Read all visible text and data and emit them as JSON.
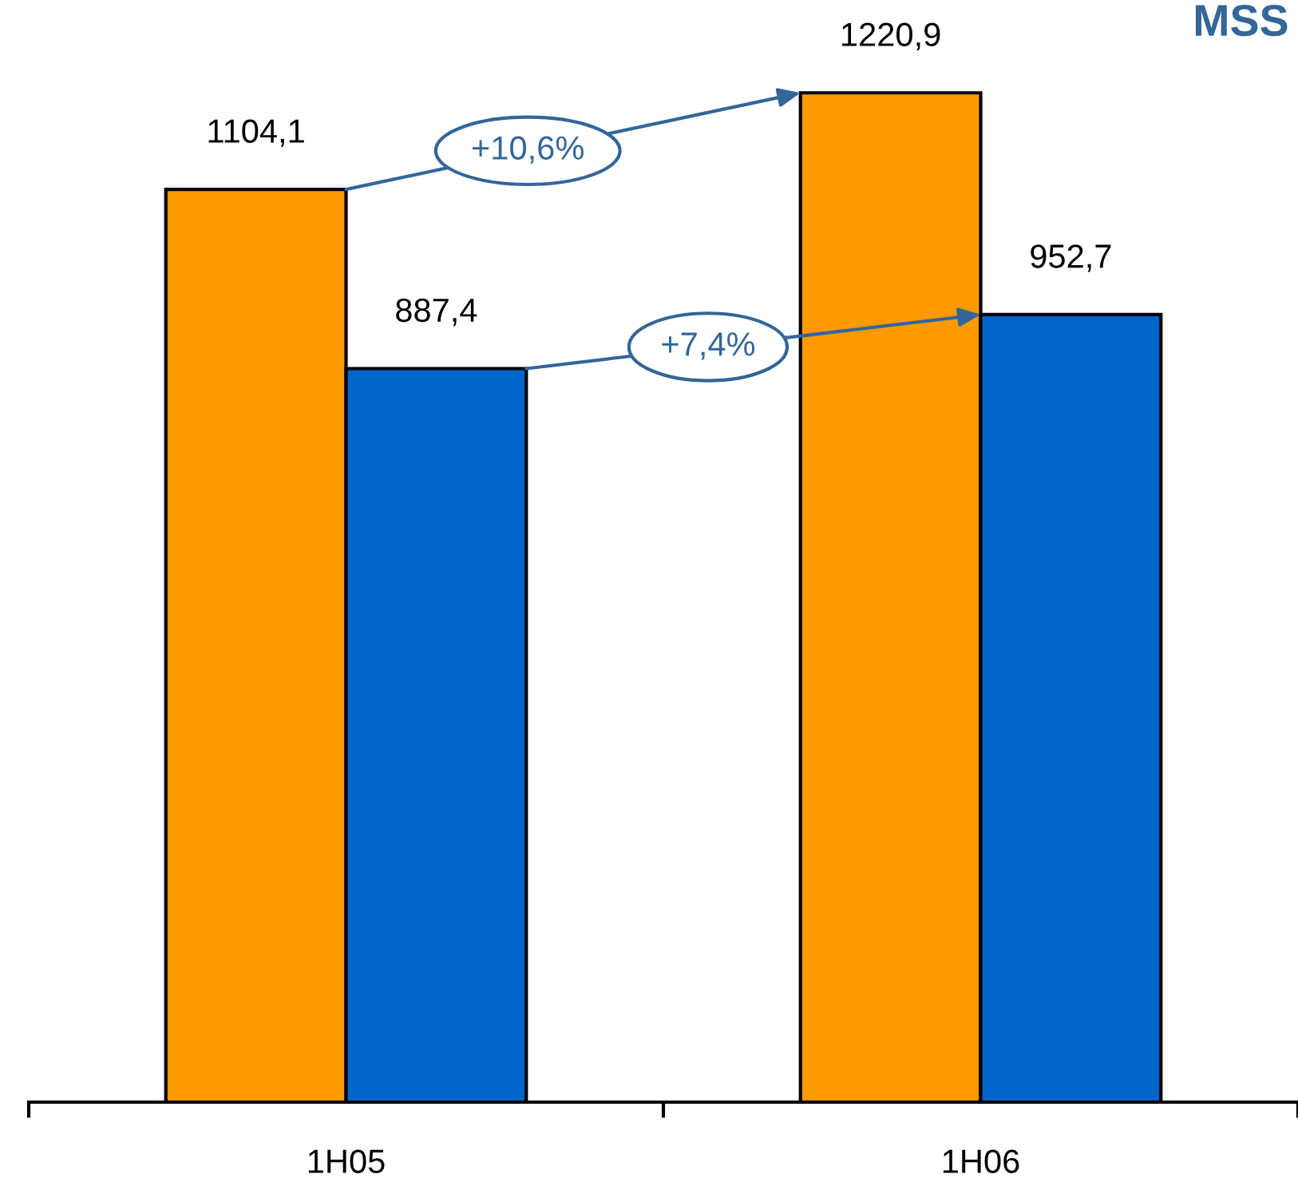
{
  "chart_data": {
    "type": "bar",
    "title": "MSS",
    "categories": [
      "1H05",
      "1H06"
    ],
    "series": [
      {
        "color": "#ff9900",
        "values": [
          1104.1,
          1220.9
        ],
        "value_labels": [
          "1104,1",
          "1220,9"
        ]
      },
      {
        "color": "#0066cc",
        "values": [
          887.4,
          952.7
        ],
        "value_labels": [
          "887,4",
          "952,7"
        ]
      }
    ],
    "annotations": [
      "+10,6%",
      "+7,4%"
    ]
  }
}
